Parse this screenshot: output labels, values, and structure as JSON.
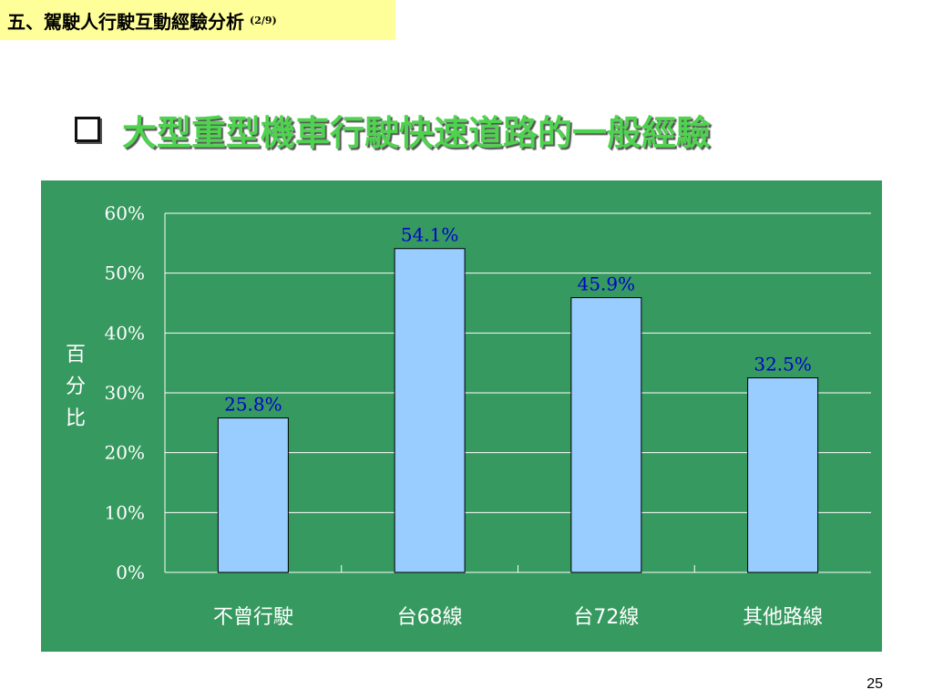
{
  "header": {
    "section": "五、駕駛人行駛互動經驗分析",
    "part": "(2/9)"
  },
  "slide": {
    "title": "大型重型機車行駛快速道路的一般經驗",
    "title_icon": "checkbox-bullet-icon",
    "page_number": "25"
  },
  "colors": {
    "chart_background": "#36995f",
    "bar_fill": "#99ccff",
    "value_label": "#0000cc",
    "title_text": "#4fd24f",
    "header_background": "#ffff99"
  },
  "chart_data": {
    "type": "bar",
    "categories": [
      "不曾行駛",
      "台68線",
      "台72線",
      "其他路線"
    ],
    "values": [
      25.8,
      54.1,
      45.9,
      32.5
    ],
    "value_labels": [
      "25.8%",
      "54.1%",
      "45.9%",
      "32.5%"
    ],
    "ylabel": "百分比",
    "ylim": [
      0,
      60
    ],
    "yticks": [
      "0%",
      "10%",
      "20%",
      "30%",
      "40%",
      "50%",
      "60%"
    ],
    "grid": true,
    "legend": "none"
  }
}
